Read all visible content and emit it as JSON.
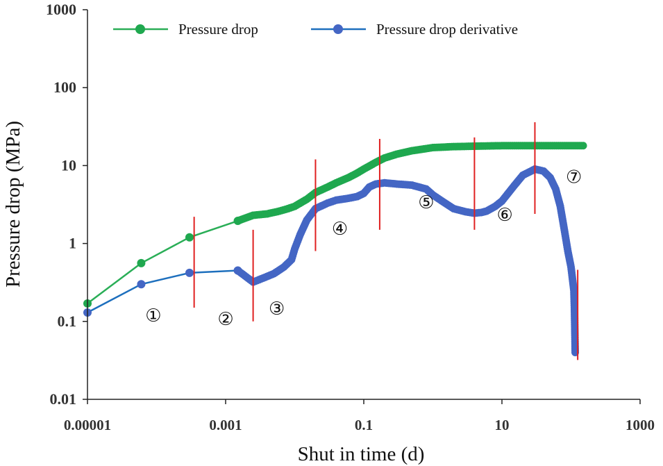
{
  "chart_data": {
    "type": "line",
    "scale": "log-log",
    "xlabel": "Shut in time (d)",
    "ylabel": "Pressure drop (MPa)",
    "xlim": [
      1e-05,
      1000
    ],
    "ylim": [
      0.01,
      1000
    ],
    "x_ticks": [
      {
        "value": 1e-05,
        "label": "0.00001"
      },
      {
        "value": 0.001,
        "label": "0.001"
      },
      {
        "value": 0.1,
        "label": "0.1"
      },
      {
        "value": 10,
        "label": "10"
      },
      {
        "value": 1000,
        "label": "1000"
      }
    ],
    "y_ticks": [
      {
        "value": 0.01,
        "label": "0.01"
      },
      {
        "value": 0.1,
        "label": "0.1"
      },
      {
        "value": 1,
        "label": "1"
      },
      {
        "value": 10,
        "label": "10"
      },
      {
        "value": 100,
        "label": "100"
      },
      {
        "value": 1000,
        "label": "1000"
      }
    ],
    "legend_position": "top",
    "series": [
      {
        "name": "Pressure drop",
        "color": "#1fa84f",
        "line_color": "#2aae57",
        "points": [
          [
            1e-05,
            0.17
          ],
          [
            6e-05,
            0.56
          ],
          [
            0.0003,
            1.2
          ],
          [
            0.0015,
            1.95
          ],
          [
            0.0025,
            2.3
          ],
          [
            0.004,
            2.4
          ],
          [
            0.006,
            2.6
          ],
          [
            0.008,
            2.8
          ],
          [
            0.01,
            3.0
          ],
          [
            0.015,
            3.7
          ],
          [
            0.02,
            4.5
          ],
          [
            0.03,
            5.3
          ],
          [
            0.04,
            6.0
          ],
          [
            0.06,
            7.0
          ],
          [
            0.08,
            8.0
          ],
          [
            0.1,
            9.0
          ],
          [
            0.15,
            11.0
          ],
          [
            0.2,
            12.5
          ],
          [
            0.3,
            14.0
          ],
          [
            0.5,
            15.5
          ],
          [
            0.8,
            16.5
          ],
          [
            1,
            17.0
          ],
          [
            2,
            17.5
          ],
          [
            5,
            17.8
          ],
          [
            10,
            18.0
          ],
          [
            20,
            18.0
          ],
          [
            50,
            18.0
          ],
          [
            100,
            18.0
          ],
          [
            150,
            18.0
          ]
        ]
      },
      {
        "name": "Pressure drop derivative",
        "color": "#4466c4",
        "line_color": "#1d6fbd",
        "points": [
          [
            1e-05,
            0.13
          ],
          [
            6e-05,
            0.3
          ],
          [
            0.0003,
            0.42
          ],
          [
            0.0015,
            0.45
          ],
          [
            0.0025,
            0.32
          ],
          [
            0.0035,
            0.36
          ],
          [
            0.005,
            0.41
          ],
          [
            0.007,
            0.5
          ],
          [
            0.009,
            0.62
          ],
          [
            0.01,
            0.85
          ],
          [
            0.012,
            1.3
          ],
          [
            0.015,
            2.0
          ],
          [
            0.02,
            2.8
          ],
          [
            0.03,
            3.3
          ],
          [
            0.04,
            3.6
          ],
          [
            0.06,
            3.8
          ],
          [
            0.08,
            4.0
          ],
          [
            0.1,
            4.4
          ],
          [
            0.12,
            5.3
          ],
          [
            0.15,
            5.8
          ],
          [
            0.2,
            6.0
          ],
          [
            0.3,
            5.8
          ],
          [
            0.5,
            5.6
          ],
          [
            0.8,
            5.0
          ],
          [
            1,
            4.2
          ],
          [
            1.5,
            3.3
          ],
          [
            2,
            2.8
          ],
          [
            3,
            2.55
          ],
          [
            4,
            2.45
          ],
          [
            5,
            2.5
          ],
          [
            6,
            2.6
          ],
          [
            8,
            3.0
          ],
          [
            10,
            3.5
          ],
          [
            15,
            5.5
          ],
          [
            20,
            7.5
          ],
          [
            30,
            9.0
          ],
          [
            40,
            8.5
          ],
          [
            50,
            7.0
          ],
          [
            60,
            5.0
          ],
          [
            70,
            3.0
          ],
          [
            80,
            1.5
          ],
          [
            90,
            0.8
          ],
          [
            100,
            0.5
          ],
          [
            105,
            0.35
          ],
          [
            110,
            0.25
          ],
          [
            112,
            0.15
          ],
          [
            115,
            0.04
          ]
        ]
      }
    ],
    "boundaries": {
      "color": "#e02020",
      "lines": [
        {
          "x": 0.00035,
          "y_range": [
            0.15,
            2.2
          ]
        },
        {
          "x": 0.0025,
          "y_range": [
            0.1,
            1.5
          ]
        },
        {
          "x": 0.02,
          "y_range": [
            0.8,
            12
          ]
        },
        {
          "x": 0.17,
          "y_range": [
            1.5,
            22
          ]
        },
        {
          "x": 4,
          "y_range": [
            1.5,
            23
          ]
        },
        {
          "x": 30,
          "y_range": [
            2.4,
            36
          ]
        },
        {
          "x": 125,
          "y_range": [
            0.032,
            0.46
          ]
        }
      ]
    },
    "annotations": [
      {
        "text": "①",
        "x": 9e-05,
        "y": 0.12
      },
      {
        "text": "②",
        "x": 0.001,
        "y": 0.108
      },
      {
        "text": "③",
        "x": 0.0055,
        "y": 0.147
      },
      {
        "text": "④",
        "x": 0.045,
        "y": 1.55
      },
      {
        "text": "⑤",
        "x": 0.8,
        "y": 3.4
      },
      {
        "text": "⑥",
        "x": 11,
        "y": 2.35
      },
      {
        "text": "⑦",
        "x": 110,
        "y": 7.2
      }
    ]
  }
}
